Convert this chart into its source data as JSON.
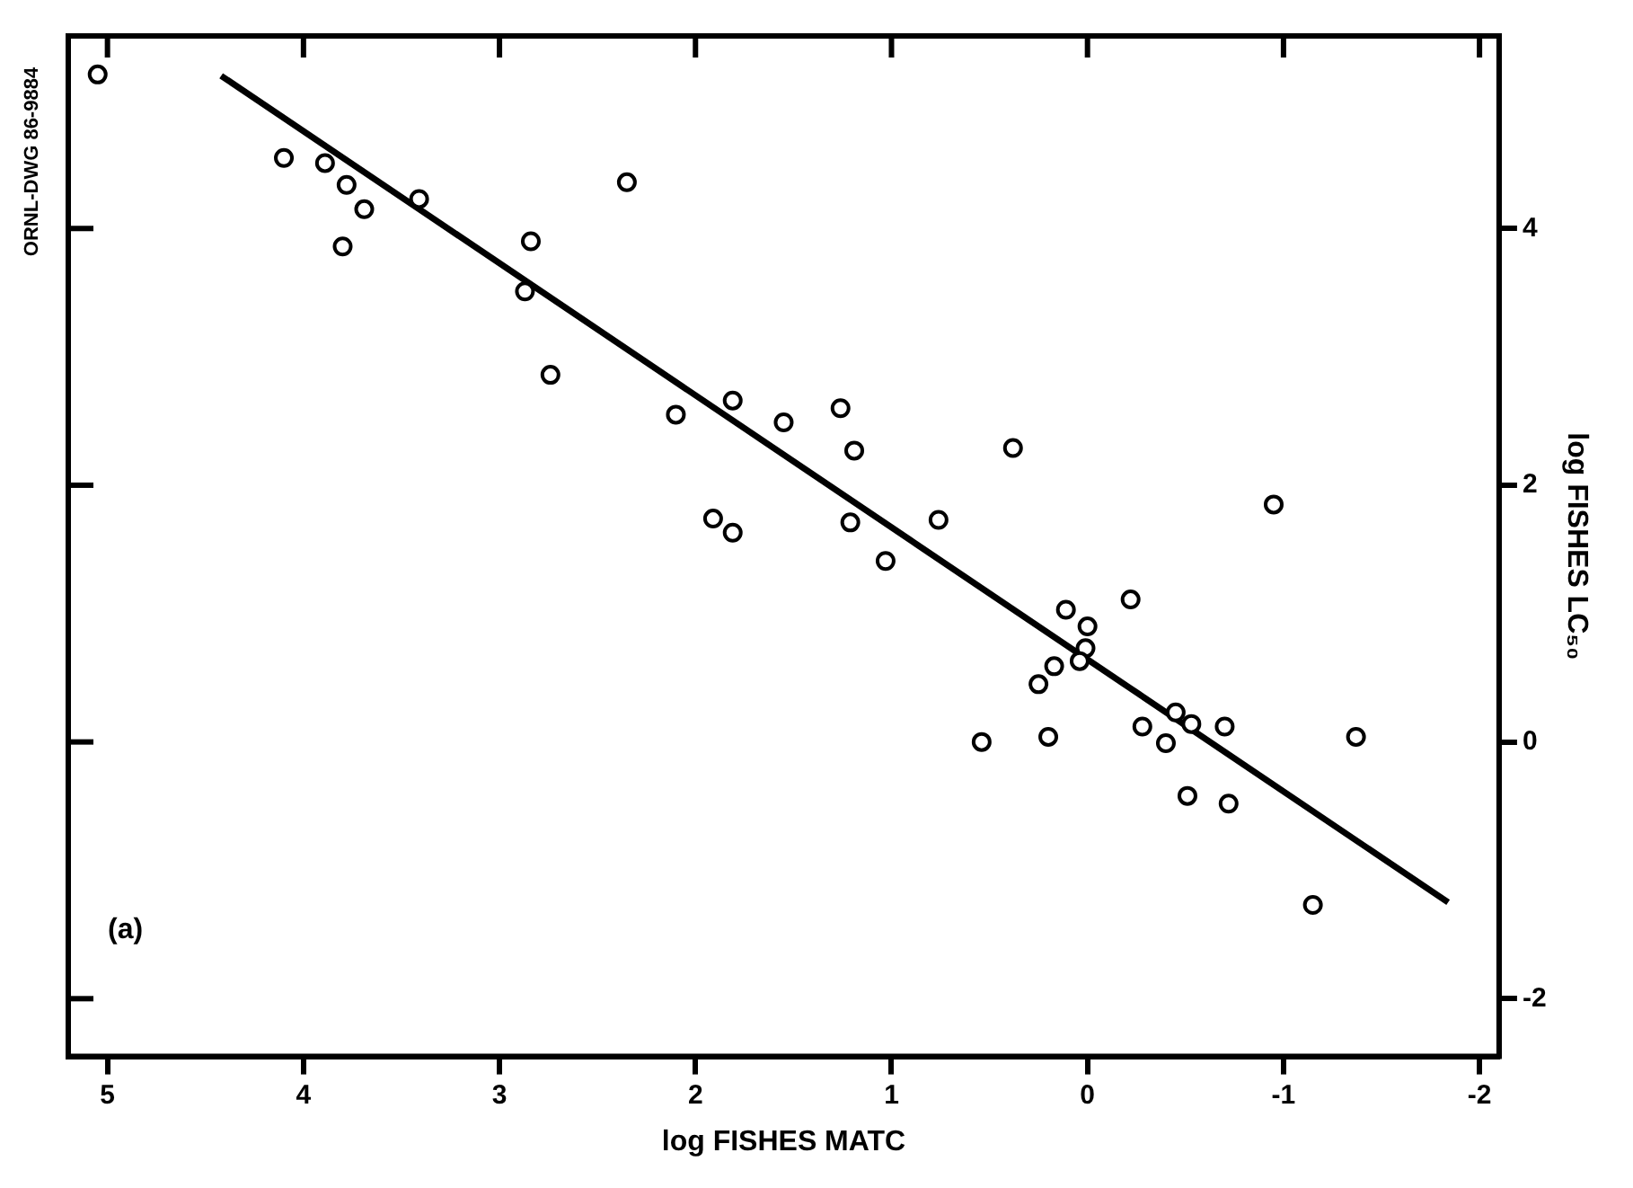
{
  "chart_data": {
    "type": "scatter",
    "xlabel": "log FISHES MATC",
    "ylabel": "log FISHES LC₅₀",
    "annotations": [
      "ORNL-DWG 86-9884",
      "(a)"
    ],
    "xlim": [
      5.2,
      -2.1
    ],
    "xticks": [
      5,
      4,
      3,
      2,
      1,
      0,
      -1,
      -2
    ],
    "ylim": [
      -2.45,
      5.5
    ],
    "yticks": [
      -2,
      0,
      2,
      4
    ],
    "grid": false,
    "legend": false,
    "marker": "circle",
    "series": [
      {
        "color": "#000000",
        "x": [
          5.05,
          4.1,
          3.89,
          3.78,
          3.69,
          3.8,
          3.41,
          2.84,
          2.87,
          2.74,
          2.35,
          2.1,
          1.81,
          1.81,
          1.91,
          1.55,
          1.26,
          1.19,
          1.21,
          1.03,
          0.38,
          0.76,
          -0.22,
          0.11,
          0.0,
          0.01,
          0.04,
          0.17,
          0.25,
          0.54,
          0.2,
          -0.45,
          -0.53,
          -0.28,
          -0.4,
          -0.7,
          -0.51,
          -0.72,
          -1.37,
          -1.15,
          -0.95
        ],
        "values": [
          5.2,
          4.55,
          4.51,
          4.34,
          4.15,
          3.86,
          4.23,
          3.9,
          3.51,
          2.86,
          4.36,
          2.55,
          2.66,
          1.63,
          1.74,
          2.49,
          2.6,
          2.27,
          1.71,
          1.41,
          2.29,
          1.73,
          1.11,
          1.03,
          0.9,
          0.73,
          0.63,
          0.59,
          0.45,
          0.0,
          0.04,
          0.23,
          0.14,
          0.12,
          -0.01,
          0.12,
          -0.42,
          -0.48,
          0.04,
          -1.27,
          1.85
        ]
      },
      {
        "type": "line",
        "color": "#000000",
        "marker": "none",
        "line_style": "solid",
        "x": [
          4.42,
          -1.84
        ],
        "values": [
          5.19,
          -1.25
        ]
      }
    ]
  }
}
